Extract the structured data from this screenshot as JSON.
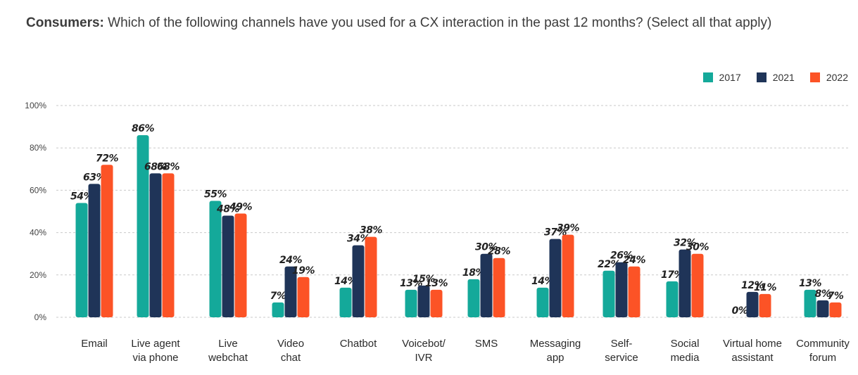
{
  "title": {
    "bold": "Consumers:",
    "rest": " Which of the following channels have you used for a CX interaction in the past 12 months? (Select all that apply)"
  },
  "chart_data": {
    "type": "bar",
    "categories": [
      [
        "Email"
      ],
      [
        "Live agent",
        "via phone"
      ],
      [
        "Live",
        "webchat"
      ],
      [
        "Video",
        "chat"
      ],
      [
        "Chatbot"
      ],
      [
        "Voicebot/",
        "IVR"
      ],
      [
        "SMS"
      ],
      [
        "Messaging",
        "app"
      ],
      [
        "Self-",
        "service"
      ],
      [
        "Social",
        "media"
      ],
      [
        "Virtual home",
        "assistant"
      ],
      [
        "Community",
        "forum"
      ]
    ],
    "series": [
      {
        "name": "2017",
        "color": "#14a99a",
        "values": [
          54,
          86,
          55,
          7,
          14,
          13,
          18,
          14,
          22,
          17,
          0,
          13
        ]
      },
      {
        "name": "2021",
        "color": "#1f3458",
        "values": [
          63,
          68,
          48,
          24,
          34,
          15,
          30,
          37,
          26,
          32,
          12,
          8
        ]
      },
      {
        "name": "2022",
        "color": "#fc5326",
        "values": [
          72,
          68,
          49,
          19,
          38,
          13,
          28,
          39,
          24,
          30,
          11,
          7
        ]
      }
    ],
    "ylim": [
      0,
      100
    ],
    "yticks": [
      "0%",
      "20%",
      "40%",
      "60%",
      "80%",
      "100%"
    ],
    "value_suffix": "%",
    "grid": true,
    "legend_position": "top-right"
  }
}
